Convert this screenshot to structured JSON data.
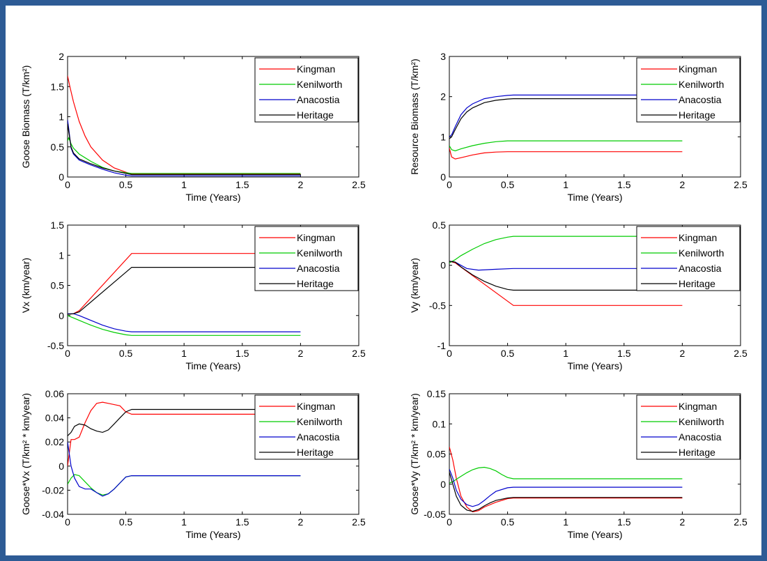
{
  "chart_data": [
    {
      "type": "line",
      "ylabel": "Goose Biomass (T/km²)",
      "xlabel": "Time (Years)",
      "xlim": [
        0,
        2.5
      ],
      "ylim": [
        0,
        2
      ],
      "xticks": [
        0,
        0.5,
        1,
        1.5,
        2,
        2.5
      ],
      "yticks": [
        0,
        0.5,
        1,
        1.5,
        2
      ],
      "xtick_labels": [
        "0",
        "0.5",
        "1",
        "1.5",
        "2",
        "2.5"
      ],
      "ytick_labels": [
        "0",
        "0.5",
        "1",
        "1.5",
        "2"
      ],
      "legend_position": "top-right",
      "series": [
        {
          "name": "Kingman",
          "color": "#ff0000",
          "x": [
            0,
            0.02,
            0.05,
            0.1,
            0.15,
            0.2,
            0.3,
            0.4,
            0.5,
            0.55,
            1,
            1.5,
            2
          ],
          "y": [
            1.68,
            1.5,
            1.25,
            0.92,
            0.68,
            0.5,
            0.28,
            0.15,
            0.08,
            0.05,
            0.05,
            0.05,
            0.05
          ]
        },
        {
          "name": "Kenilworth",
          "color": "#00cc00",
          "x": [
            0,
            0.01,
            0.03,
            0.05,
            0.1,
            0.2,
            0.3,
            0.4,
            0.5,
            0.55,
            1,
            1.5,
            2
          ],
          "y": [
            0.6,
            0.65,
            0.55,
            0.48,
            0.38,
            0.26,
            0.16,
            0.1,
            0.07,
            0.06,
            0.06,
            0.06,
            0.06
          ]
        },
        {
          "name": "Anacostia",
          "color": "#0000cc",
          "x": [
            0,
            0.01,
            0.03,
            0.05,
            0.1,
            0.2,
            0.3,
            0.4,
            0.5,
            0.55,
            1,
            1.5,
            2
          ],
          "y": [
            0.95,
            0.8,
            0.48,
            0.38,
            0.28,
            0.2,
            0.13,
            0.07,
            0.03,
            0.02,
            0.02,
            0.02,
            0.02
          ]
        },
        {
          "name": "Heritage",
          "color": "#000000",
          "x": [
            0,
            0.01,
            0.03,
            0.05,
            0.1,
            0.2,
            0.3,
            0.4,
            0.5,
            0.55,
            1,
            1.5,
            2
          ],
          "y": [
            0.88,
            0.75,
            0.5,
            0.4,
            0.3,
            0.22,
            0.15,
            0.1,
            0.06,
            0.04,
            0.04,
            0.04,
            0.04
          ]
        }
      ]
    },
    {
      "type": "line",
      "ylabel": "Resource Biomass (T/km²)",
      "xlabel": "Time (Years)",
      "xlim": [
        0,
        2.5
      ],
      "ylim": [
        0,
        3
      ],
      "xticks": [
        0,
        0.5,
        1,
        1.5,
        2,
        2.5
      ],
      "yticks": [
        0,
        1,
        2,
        3
      ],
      "xtick_labels": [
        "0",
        "0.5",
        "1",
        "1.5",
        "2",
        "2.5"
      ],
      "ytick_labels": [
        "0",
        "1",
        "2",
        "3"
      ],
      "legend_position": "top-right",
      "series": [
        {
          "name": "Kingman",
          "color": "#ff0000",
          "x": [
            0,
            0.02,
            0.05,
            0.1,
            0.2,
            0.3,
            0.4,
            0.5,
            0.55,
            1,
            1.5,
            2
          ],
          "y": [
            0.72,
            0.5,
            0.45,
            0.48,
            0.55,
            0.6,
            0.62,
            0.63,
            0.63,
            0.63,
            0.63,
            0.63
          ]
        },
        {
          "name": "Kenilworth",
          "color": "#00cc00",
          "x": [
            0,
            0.02,
            0.05,
            0.1,
            0.2,
            0.3,
            0.4,
            0.5,
            0.55,
            1,
            1.5,
            2
          ],
          "y": [
            0.78,
            0.68,
            0.65,
            0.7,
            0.78,
            0.84,
            0.88,
            0.9,
            0.9,
            0.9,
            0.9,
            0.9
          ]
        },
        {
          "name": "Anacostia",
          "color": "#0000cc",
          "x": [
            0,
            0.02,
            0.05,
            0.1,
            0.15,
            0.2,
            0.3,
            0.4,
            0.5,
            0.55,
            1,
            1.5,
            2
          ],
          "y": [
            1.0,
            1.05,
            1.25,
            1.55,
            1.72,
            1.82,
            1.95,
            2.0,
            2.03,
            2.04,
            2.04,
            2.04,
            2.04
          ]
        },
        {
          "name": "Heritage",
          "color": "#000000",
          "x": [
            0,
            0.02,
            0.05,
            0.1,
            0.15,
            0.2,
            0.3,
            0.4,
            0.5,
            0.55,
            1,
            1.5,
            2
          ],
          "y": [
            0.95,
            1.0,
            1.18,
            1.45,
            1.62,
            1.72,
            1.85,
            1.91,
            1.94,
            1.95,
            1.95,
            1.95,
            1.95
          ]
        }
      ]
    },
    {
      "type": "line",
      "ylabel": "Vx (km/year)",
      "xlabel": "Time (Years)",
      "xlim": [
        0,
        2.5
      ],
      "ylim": [
        -0.5,
        1.5
      ],
      "xticks": [
        0,
        0.5,
        1,
        1.5,
        2,
        2.5
      ],
      "yticks": [
        -0.5,
        0,
        0.5,
        1,
        1.5
      ],
      "xtick_labels": [
        "0",
        "0.5",
        "1",
        "1.5",
        "2",
        "2.5"
      ],
      "ytick_labels": [
        "-0.5",
        "0",
        "0.5",
        "1",
        "1.5"
      ],
      "legend_position": "top-right",
      "series": [
        {
          "name": "Kingman",
          "color": "#ff0000",
          "x": [
            0,
            0.05,
            0.1,
            0.55,
            1,
            1.5,
            2
          ],
          "y": [
            0.02,
            0.03,
            0.08,
            1.03,
            1.03,
            1.03,
            1.03
          ]
        },
        {
          "name": "Kenilworth",
          "color": "#00cc00",
          "x": [
            0,
            0.05,
            0.1,
            0.2,
            0.3,
            0.4,
            0.5,
            0.55,
            1,
            1.5,
            2
          ],
          "y": [
            0.0,
            -0.04,
            -0.08,
            -0.16,
            -0.23,
            -0.28,
            -0.32,
            -0.33,
            -0.33,
            -0.33,
            -0.33
          ]
        },
        {
          "name": "Anacostia",
          "color": "#0000cc",
          "x": [
            0,
            0.05,
            0.1,
            0.2,
            0.3,
            0.4,
            0.5,
            0.55,
            1,
            1.5,
            2
          ],
          "y": [
            0.03,
            0.03,
            0.0,
            -0.08,
            -0.16,
            -0.22,
            -0.26,
            -0.27,
            -0.27,
            -0.27,
            -0.27
          ]
        },
        {
          "name": "Heritage",
          "color": "#000000",
          "x": [
            0,
            0.05,
            0.1,
            0.55,
            1,
            1.5,
            2
          ],
          "y": [
            0.02,
            0.03,
            0.06,
            0.8,
            0.8,
            0.8,
            0.8
          ]
        }
      ]
    },
    {
      "type": "line",
      "ylabel": "Vy (km/year)",
      "xlabel": "Time (Years)",
      "xlim": [
        0,
        2.5
      ],
      "ylim": [
        -1,
        0.5
      ],
      "xticks": [
        0,
        0.5,
        1,
        1.5,
        2,
        2.5
      ],
      "yticks": [
        -1,
        -0.5,
        0,
        0.5
      ],
      "xtick_labels": [
        "0",
        "0.5",
        "1",
        "1.5",
        "2",
        "2.5"
      ],
      "ytick_labels": [
        "-1",
        "-0.5",
        "0",
        "0.5"
      ],
      "legend_position": "top-right",
      "series": [
        {
          "name": "Kingman",
          "color": "#ff0000",
          "x": [
            0,
            0.05,
            0.55,
            1,
            1.5,
            2
          ],
          "y": [
            0.05,
            0.03,
            -0.5,
            -0.5,
            -0.5,
            -0.5
          ]
        },
        {
          "name": "Kenilworth",
          "color": "#00cc00",
          "x": [
            0,
            0.05,
            0.1,
            0.2,
            0.3,
            0.4,
            0.5,
            0.55,
            1,
            1.5,
            2
          ],
          "y": [
            0.03,
            0.07,
            0.12,
            0.2,
            0.27,
            0.32,
            0.35,
            0.36,
            0.36,
            0.36,
            0.36
          ]
        },
        {
          "name": "Anacostia",
          "color": "#0000cc",
          "x": [
            0,
            0.05,
            0.1,
            0.15,
            0.25,
            0.4,
            0.55,
            1,
            1.5,
            2
          ],
          "y": [
            0.05,
            0.04,
            0.0,
            -0.04,
            -0.06,
            -0.05,
            -0.04,
            -0.04,
            -0.04,
            -0.04
          ]
        },
        {
          "name": "Heritage",
          "color": "#000000",
          "x": [
            0,
            0.05,
            0.1,
            0.2,
            0.3,
            0.4,
            0.5,
            0.55,
            1,
            1.5,
            2
          ],
          "y": [
            0.05,
            0.04,
            -0.02,
            -0.12,
            -0.2,
            -0.26,
            -0.3,
            -0.31,
            -0.31,
            -0.31,
            -0.31
          ]
        }
      ]
    },
    {
      "type": "line",
      "ylabel": "Goose*Vx (T/km² * km/year)",
      "xlabel": "Time (Years)",
      "xlim": [
        0,
        2.5
      ],
      "ylim": [
        -0.04,
        0.06
      ],
      "xticks": [
        0,
        0.5,
        1,
        1.5,
        2,
        2.5
      ],
      "yticks": [
        -0.04,
        -0.02,
        0,
        0.02,
        0.04,
        0.06
      ],
      "xtick_labels": [
        "0",
        "0.5",
        "1",
        "1.5",
        "2",
        "2.5"
      ],
      "ytick_labels": [
        "-0.04",
        "-0.02",
        "0",
        "0.02",
        "0.04",
        "0.06"
      ],
      "legend_position": "top-right",
      "series": [
        {
          "name": "Kingman",
          "color": "#ff0000",
          "x": [
            0,
            0.03,
            0.06,
            0.1,
            0.15,
            0.2,
            0.25,
            0.3,
            0.35,
            0.4,
            0.45,
            0.5,
            0.55,
            1,
            1.5,
            2
          ],
          "y": [
            0.0,
            0.022,
            0.022,
            0.024,
            0.036,
            0.046,
            0.052,
            0.053,
            0.052,
            0.051,
            0.05,
            0.045,
            0.043,
            0.043,
            0.043,
            0.043
          ]
        },
        {
          "name": "Kenilworth",
          "color": "#00cc00",
          "x": [
            0,
            0.03,
            0.06,
            0.1,
            0.15,
            0.2,
            0.25,
            0.3,
            0.35,
            0.4,
            0.45,
            0.5,
            0.55,
            1,
            1.5,
            2
          ],
          "y": [
            -0.015,
            -0.01,
            -0.007,
            -0.008,
            -0.013,
            -0.018,
            -0.022,
            -0.024,
            -0.023,
            -0.019,
            -0.014,
            -0.009,
            -0.008,
            -0.008,
            -0.008,
            -0.008
          ]
        },
        {
          "name": "Anacostia",
          "color": "#0000cc",
          "x": [
            0,
            0.03,
            0.06,
            0.1,
            0.15,
            0.2,
            0.25,
            0.3,
            0.35,
            0.4,
            0.45,
            0.5,
            0.55,
            1,
            1.5,
            2
          ],
          "y": [
            0.02,
            0.0,
            -0.01,
            -0.017,
            -0.019,
            -0.019,
            -0.022,
            -0.025,
            -0.023,
            -0.019,
            -0.014,
            -0.009,
            -0.008,
            -0.008,
            -0.008,
            -0.008
          ]
        },
        {
          "name": "Heritage",
          "color": "#000000",
          "x": [
            0,
            0.03,
            0.06,
            0.1,
            0.15,
            0.2,
            0.25,
            0.3,
            0.35,
            0.4,
            0.45,
            0.5,
            0.55,
            1,
            1.5,
            2
          ],
          "y": [
            0.025,
            0.028,
            0.033,
            0.035,
            0.034,
            0.031,
            0.029,
            0.028,
            0.03,
            0.035,
            0.04,
            0.045,
            0.047,
            0.047,
            0.047,
            0.047
          ]
        }
      ]
    },
    {
      "type": "line",
      "ylabel": "Goose*Vy (T/km² * km/year)",
      "xlabel": "Time (Years)",
      "xlim": [
        0,
        2.5
      ],
      "ylim": [
        -0.05,
        0.15
      ],
      "xticks": [
        0,
        0.5,
        1,
        1.5,
        2,
        2.5
      ],
      "yticks": [
        -0.05,
        0,
        0.05,
        0.1,
        0.15
      ],
      "xtick_labels": [
        "0",
        "0.5",
        "1",
        "1.5",
        "2",
        "2.5"
      ],
      "ytick_labels": [
        "-0.05",
        "0",
        "0.05",
        "0.1",
        "0.15"
      ],
      "legend_position": "top-right",
      "series": [
        {
          "name": "Kingman",
          "color": "#ff0000",
          "x": [
            0,
            0.03,
            0.06,
            0.1,
            0.15,
            0.2,
            0.25,
            0.3,
            0.4,
            0.5,
            0.55,
            1,
            1.5,
            2
          ],
          "y": [
            0.062,
            0.04,
            0.01,
            -0.02,
            -0.038,
            -0.046,
            -0.044,
            -0.038,
            -0.03,
            -0.024,
            -0.023,
            -0.023,
            -0.023,
            -0.023
          ]
        },
        {
          "name": "Kenilworth",
          "color": "#00cc00",
          "x": [
            0,
            0.03,
            0.06,
            0.1,
            0.15,
            0.2,
            0.25,
            0.3,
            0.35,
            0.4,
            0.45,
            0.5,
            0.55,
            1,
            1.5,
            2
          ],
          "y": [
            0.002,
            0.004,
            0.008,
            0.013,
            0.019,
            0.024,
            0.027,
            0.028,
            0.026,
            0.022,
            0.016,
            0.011,
            0.009,
            0.009,
            0.009,
            0.009
          ]
        },
        {
          "name": "Anacostia",
          "color": "#0000cc",
          "x": [
            0,
            0.03,
            0.06,
            0.1,
            0.15,
            0.2,
            0.25,
            0.3,
            0.35,
            0.4,
            0.5,
            0.55,
            1,
            1.5,
            2
          ],
          "y": [
            0.025,
            0.01,
            -0.01,
            -0.025,
            -0.034,
            -0.037,
            -0.034,
            -0.027,
            -0.019,
            -0.012,
            -0.006,
            -0.005,
            -0.005,
            -0.005,
            -0.005
          ]
        },
        {
          "name": "Heritage",
          "color": "#000000",
          "x": [
            0,
            0.03,
            0.06,
            0.1,
            0.15,
            0.2,
            0.25,
            0.3,
            0.35,
            0.4,
            0.5,
            0.55,
            1,
            1.5,
            2
          ],
          "y": [
            0.02,
            0.0,
            -0.02,
            -0.035,
            -0.043,
            -0.045,
            -0.042,
            -0.036,
            -0.031,
            -0.027,
            -0.023,
            -0.022,
            -0.022,
            -0.022,
            -0.022
          ]
        }
      ]
    }
  ]
}
